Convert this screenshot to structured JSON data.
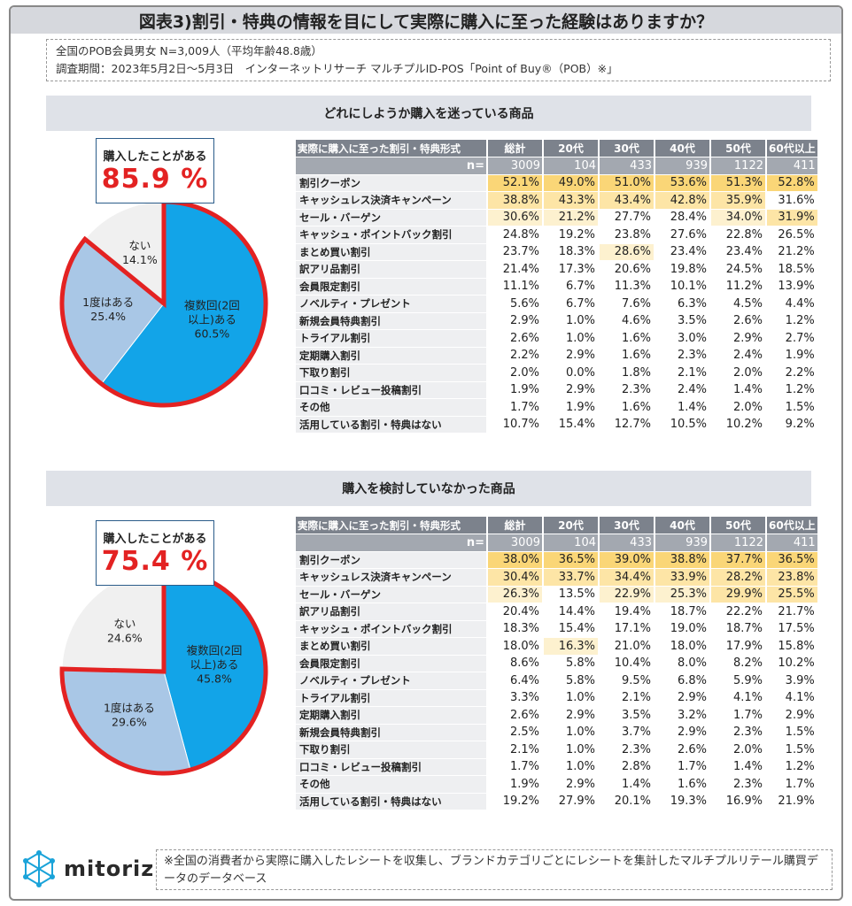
{
  "title": "図表3)割引・特典の情報を目にして実際に購入に至った経験はありますか？",
  "meta": {
    "line1": "全国のPOB会員男女 N=3,009人（平均年齢48.8歳）",
    "line2": "調査期間：2023年5月2日～5月3日　インターネットリサーチ マルチプルID-POS「Point of Buy®（POB）※」"
  },
  "table_header": {
    "category_label": "実際に購入に至った割引・特典形式",
    "n_label": "n=",
    "columns": [
      "総計",
      "20代",
      "30代",
      "40代",
      "50代",
      "60代以上"
    ]
  },
  "colors": {
    "pie_blue": "#12a4e8",
    "pie_light": "#a9c7e6",
    "pie_none": "#f0f0f0",
    "accent_red": "#e32222",
    "highlight_strong": "#fad677",
    "highlight_mid": "#fde5a6",
    "highlight_light": "#fdf1cf"
  },
  "chart_data": [
    {
      "type": "pie",
      "title": "どれにしようか購入を迷っている商品",
      "badge_label": "購入したことがある",
      "badge_value": "85.9 %",
      "slices": [
        {
          "label": "複数回(2回以上)ある",
          "value": 60.5,
          "display": "60.5%"
        },
        {
          "label": "1度はある",
          "value": 25.4,
          "display": "25.4%"
        },
        {
          "label": "ない",
          "value": 14.1,
          "display": "14.1%"
        }
      ]
    },
    {
      "type": "table",
      "title": "どれにしようか購入を迷っている商品",
      "n": [
        "3009",
        "104",
        "433",
        "939",
        "1122",
        "411"
      ],
      "rows": [
        {
          "label": "割引クーポン",
          "values": [
            "52.1%",
            "49.0%",
            "51.0%",
            "53.6%",
            "51.3%",
            "52.8%"
          ],
          "hl": [
            1,
            1,
            1,
            1,
            1,
            1
          ]
        },
        {
          "label": "キャッシュレス決済キャンペーン",
          "values": [
            "38.8%",
            "43.3%",
            "43.4%",
            "42.8%",
            "35.9%",
            "31.6%"
          ],
          "hl": [
            2,
            2,
            2,
            2,
            2,
            0
          ]
        },
        {
          "label": "セール・バーゲン",
          "values": [
            "30.6%",
            "21.2%",
            "27.7%",
            "28.4%",
            "34.0%",
            "31.9%"
          ],
          "hl": [
            3,
            3,
            0,
            0,
            3,
            2
          ]
        },
        {
          "label": "キャッシュ・ポイントバック割引",
          "values": [
            "24.8%",
            "19.2%",
            "23.8%",
            "27.6%",
            "22.8%",
            "26.5%"
          ],
          "hl": [
            0,
            0,
            0,
            0,
            0,
            0
          ]
        },
        {
          "label": "まとめ買い割引",
          "values": [
            "23.7%",
            "18.3%",
            "28.6%",
            "23.4%",
            "23.4%",
            "21.2%"
          ],
          "hl": [
            0,
            0,
            3,
            0,
            0,
            0
          ]
        },
        {
          "label": "訳アリ品割引",
          "values": [
            "21.4%",
            "17.3%",
            "20.6%",
            "19.8%",
            "24.5%",
            "18.5%"
          ],
          "hl": [
            0,
            0,
            0,
            0,
            0,
            0
          ]
        },
        {
          "label": "会員限定割引",
          "values": [
            "11.1%",
            "6.7%",
            "11.3%",
            "10.1%",
            "11.2%",
            "13.9%"
          ],
          "hl": [
            0,
            0,
            0,
            0,
            0,
            0
          ]
        },
        {
          "label": "ノベルティ・プレゼント",
          "values": [
            "5.6%",
            "6.7%",
            "7.6%",
            "6.3%",
            "4.5%",
            "4.4%"
          ],
          "hl": [
            0,
            0,
            0,
            0,
            0,
            0
          ]
        },
        {
          "label": "新規会員特典割引",
          "values": [
            "2.9%",
            "1.0%",
            "4.6%",
            "3.5%",
            "2.6%",
            "1.2%"
          ],
          "hl": [
            0,
            0,
            0,
            0,
            0,
            0
          ]
        },
        {
          "label": "トライアル割引",
          "values": [
            "2.6%",
            "1.0%",
            "1.6%",
            "3.0%",
            "2.9%",
            "2.7%"
          ],
          "hl": [
            0,
            0,
            0,
            0,
            0,
            0
          ]
        },
        {
          "label": "定期購入割引",
          "values": [
            "2.2%",
            "2.9%",
            "1.6%",
            "2.3%",
            "2.4%",
            "1.9%"
          ],
          "hl": [
            0,
            0,
            0,
            0,
            0,
            0
          ]
        },
        {
          "label": "下取り割引",
          "values": [
            "2.0%",
            "0.0%",
            "1.8%",
            "2.1%",
            "2.0%",
            "2.2%"
          ],
          "hl": [
            0,
            0,
            0,
            0,
            0,
            0
          ]
        },
        {
          "label": "口コミ・レビュー投稿割引",
          "values": [
            "1.9%",
            "2.9%",
            "2.3%",
            "2.4%",
            "1.4%",
            "1.2%"
          ],
          "hl": [
            0,
            0,
            0,
            0,
            0,
            0
          ]
        },
        {
          "label": "その他",
          "values": [
            "1.7%",
            "1.9%",
            "1.6%",
            "1.4%",
            "2.0%",
            "1.5%"
          ],
          "hl": [
            0,
            0,
            0,
            0,
            0,
            0
          ]
        },
        {
          "label": "活用している割引・特典はない",
          "values": [
            "10.7%",
            "15.4%",
            "12.7%",
            "10.5%",
            "10.2%",
            "9.2%"
          ],
          "hl": [
            0,
            0,
            0,
            0,
            0,
            0
          ]
        }
      ]
    },
    {
      "type": "pie",
      "title": "購入を検討していなかった商品",
      "badge_label": "購入したことがある",
      "badge_value": "75.4 %",
      "slices": [
        {
          "label": "複数回(2回以上)ある",
          "value": 45.8,
          "display": "45.8%"
        },
        {
          "label": "1度はある",
          "value": 29.6,
          "display": "29.6%"
        },
        {
          "label": "ない",
          "value": 24.6,
          "display": "24.6%"
        }
      ]
    },
    {
      "type": "table",
      "title": "購入を検討していなかった商品",
      "n": [
        "3009",
        "104",
        "433",
        "939",
        "1122",
        "411"
      ],
      "rows": [
        {
          "label": "割引クーポン",
          "values": [
            "38.0%",
            "36.5%",
            "39.0%",
            "38.8%",
            "37.7%",
            "36.5%"
          ],
          "hl": [
            1,
            1,
            1,
            1,
            1,
            1
          ]
        },
        {
          "label": "キャッシュレス決済キャンペーン",
          "values": [
            "30.4%",
            "33.7%",
            "34.4%",
            "33.9%",
            "28.2%",
            "23.8%"
          ],
          "hl": [
            2,
            2,
            2,
            2,
            2,
            2
          ]
        },
        {
          "label": "セール・バーゲン",
          "values": [
            "26.3%",
            "13.5%",
            "22.9%",
            "25.3%",
            "29.9%",
            "25.5%"
          ],
          "hl": [
            3,
            0,
            3,
            3,
            2,
            2
          ]
        },
        {
          "label": "訳アリ品割引",
          "values": [
            "20.4%",
            "14.4%",
            "19.4%",
            "18.7%",
            "22.2%",
            "21.7%"
          ],
          "hl": [
            0,
            0,
            0,
            0,
            0,
            0
          ]
        },
        {
          "label": "キャッシュ・ポイントバック割引",
          "values": [
            "18.3%",
            "15.4%",
            "17.1%",
            "19.0%",
            "18.7%",
            "17.5%"
          ],
          "hl": [
            0,
            0,
            0,
            0,
            0,
            0
          ]
        },
        {
          "label": "まとめ買い割引",
          "values": [
            "18.0%",
            "16.3%",
            "21.0%",
            "18.0%",
            "17.9%",
            "15.8%"
          ],
          "hl": [
            0,
            3,
            0,
            0,
            0,
            0
          ]
        },
        {
          "label": "会員限定割引",
          "values": [
            "8.6%",
            "5.8%",
            "10.4%",
            "8.0%",
            "8.2%",
            "10.2%"
          ],
          "hl": [
            0,
            0,
            0,
            0,
            0,
            0
          ]
        },
        {
          "label": "ノベルティ・プレゼント",
          "values": [
            "6.4%",
            "5.8%",
            "9.5%",
            "6.8%",
            "5.9%",
            "3.9%"
          ],
          "hl": [
            0,
            0,
            0,
            0,
            0,
            0
          ]
        },
        {
          "label": "トライアル割引",
          "values": [
            "3.3%",
            "1.0%",
            "2.1%",
            "2.9%",
            "4.1%",
            "4.1%"
          ],
          "hl": [
            0,
            0,
            0,
            0,
            0,
            0
          ]
        },
        {
          "label": "定期購入割引",
          "values": [
            "2.6%",
            "2.9%",
            "3.5%",
            "3.2%",
            "1.7%",
            "2.9%"
          ],
          "hl": [
            0,
            0,
            0,
            0,
            0,
            0
          ]
        },
        {
          "label": "新規会員特典割引",
          "values": [
            "2.5%",
            "1.0%",
            "3.7%",
            "2.9%",
            "2.3%",
            "1.5%"
          ],
          "hl": [
            0,
            0,
            0,
            0,
            0,
            0
          ]
        },
        {
          "label": "下取り割引",
          "values": [
            "2.1%",
            "1.0%",
            "2.3%",
            "2.6%",
            "2.0%",
            "1.5%"
          ],
          "hl": [
            0,
            0,
            0,
            0,
            0,
            0
          ]
        },
        {
          "label": "口コミ・レビュー投稿割引",
          "values": [
            "1.7%",
            "1.0%",
            "2.8%",
            "1.7%",
            "1.4%",
            "1.2%"
          ],
          "hl": [
            0,
            0,
            0,
            0,
            0,
            0
          ]
        },
        {
          "label": "その他",
          "values": [
            "1.9%",
            "2.9%",
            "1.4%",
            "1.6%",
            "2.3%",
            "1.7%"
          ],
          "hl": [
            0,
            0,
            0,
            0,
            0,
            0
          ]
        },
        {
          "label": "活用している割引・特典はない",
          "values": [
            "19.2%",
            "27.9%",
            "20.1%",
            "19.3%",
            "16.9%",
            "21.9%"
          ],
          "hl": [
            0,
            0,
            0,
            0,
            0,
            0
          ]
        }
      ]
    }
  ],
  "footer": {
    "logo_text": "mitoriz",
    "note": "※全国の消費者から実際に購入したレシートを収集し、ブランドカテゴリごとにレシートを集計したマルチプルリテール購買データのデータベース"
  }
}
